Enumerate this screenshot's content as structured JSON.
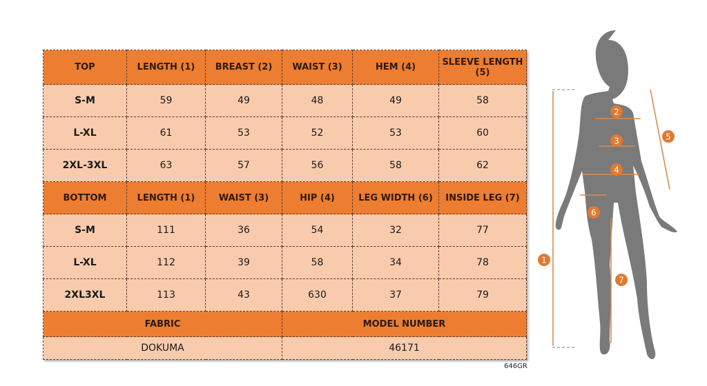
{
  "top": {
    "headers": [
      "TOP",
      "LENGTH (1)",
      "BREAST (2)",
      "WAIST (3)",
      "HEM (4)",
      "SLEEVE LENGTH (5)"
    ],
    "rows": [
      [
        "S-M",
        "59",
        "49",
        "48",
        "49",
        "58"
      ],
      [
        "L-XL",
        "61",
        "53",
        "52",
        "53",
        "60"
      ],
      [
        "2XL-3XL",
        "63",
        "57",
        "56",
        "58",
        "62"
      ]
    ]
  },
  "bottom": {
    "headers": [
      "BOTTOM",
      "LENGTH (1)",
      "WAIST (3)",
      "HIP (4)",
      "LEG WIDTH (6)",
      "INSIDE LEG (7)"
    ],
    "rows": [
      [
        "S-M",
        "111",
        "36",
        "54",
        "32",
        "77"
      ],
      [
        "L-XL",
        "112",
        "39",
        "58",
        "34",
        "78"
      ],
      [
        "2XL3XL",
        "113",
        "43",
        "630",
        "37",
        "79"
      ]
    ]
  },
  "fabric": {
    "label": "FABRIC",
    "value": "DOKUMA"
  },
  "model": {
    "label": "MODEL NUMBER",
    "value": "46171"
  },
  "product_code": "646GR",
  "figure": {
    "markers": [
      "1",
      "2",
      "3",
      "4",
      "5",
      "6",
      "7"
    ]
  },
  "colors": {
    "header": "#ed7d31",
    "row": "#f9cbad",
    "silhouette": "#7a7a7a"
  }
}
